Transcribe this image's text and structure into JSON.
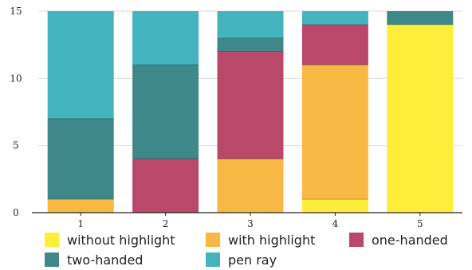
{
  "chart_data": {
    "type": "bar",
    "stacked": true,
    "categories": [
      "1",
      "2",
      "3",
      "4",
      "5"
    ],
    "ylim": [
      0,
      15
    ],
    "yticks": [
      0,
      5,
      10,
      15
    ],
    "grid": true,
    "legend_position": "bottom",
    "series": [
      {
        "name": "without highlight",
        "color": "#fcee3a",
        "values": [
          0,
          0,
          0,
          1,
          14
        ]
      },
      {
        "name": "with highlight",
        "color": "#f8b844",
        "values": [
          1,
          0,
          4,
          10,
          0
        ]
      },
      {
        "name": "one-handed",
        "color": "#b9486a",
        "values": [
          0,
          4,
          8,
          3,
          0
        ]
      },
      {
        "name": "two-handed",
        "color": "#3f888a",
        "values": [
          6,
          7,
          1,
          0,
          1
        ]
      },
      {
        "name": "pen ray",
        "color": "#43b3bd",
        "values": [
          8,
          4,
          2,
          1,
          0
        ]
      }
    ]
  }
}
